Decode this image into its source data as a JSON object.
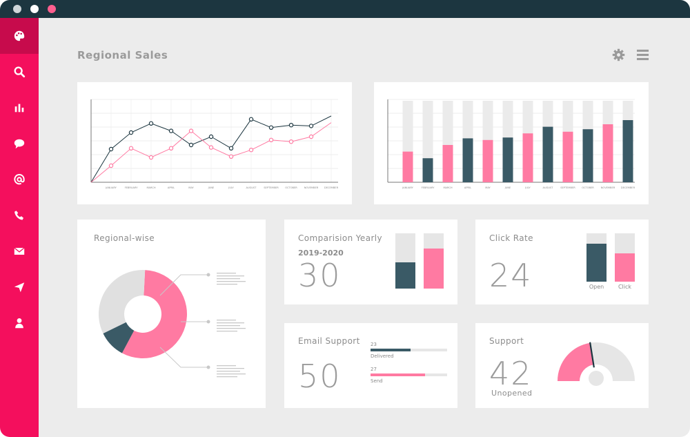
{
  "window": {
    "dot_colors": [
      "#cfd6d9",
      "#ffffff",
      "#ff5f8f"
    ]
  },
  "sidebar": {
    "items": [
      {
        "icon": "palette-icon",
        "active": true
      },
      {
        "icon": "search-icon"
      },
      {
        "icon": "bar-chart-icon"
      },
      {
        "icon": "chat-icon"
      },
      {
        "icon": "at-sign-icon"
      },
      {
        "icon": "phone-icon"
      },
      {
        "icon": "mail-icon"
      },
      {
        "icon": "send-icon"
      },
      {
        "icon": "user-icon"
      }
    ]
  },
  "header": {
    "title": "Regional Sales",
    "icons": [
      "gear-icon",
      "menu-icon"
    ]
  },
  "colors": {
    "accent": "#f40f5d",
    "pink": "#ff7aa2",
    "dark": "#3a5a66",
    "light": "#e6e6e6"
  },
  "months": [
    "JANUARY",
    "FEBRUARY",
    "MARCH",
    "APRIL",
    "MAY",
    "JUNE",
    "JULY",
    "AUGUST",
    "SEPTEMBER",
    "OCTOBER",
    "NOVEMBER",
    "DECEMBER"
  ],
  "chart_data": [
    {
      "type": "line",
      "categories": [
        "JANUARY",
        "FEBRUARY",
        "MARCH",
        "APRIL",
        "MAY",
        "JUNE",
        "JULY",
        "AUGUST",
        "SEPTEMBER",
        "OCTOBER",
        "NOVEMBER",
        "DECEMBER"
      ],
      "series": [
        {
          "color": "#1c3640",
          "values": [
            40,
            60,
            71,
            62,
            45,
            55,
            41,
            76,
            66,
            69,
            68,
            80
          ]
        },
        {
          "color": "#ff7aa2",
          "values": [
            20,
            41,
            30,
            41,
            62,
            42,
            31,
            39,
            51,
            49,
            55,
            72
          ]
        }
      ],
      "ylim": [
        0,
        100
      ],
      "grid": true
    },
    {
      "type": "bar",
      "categories": [
        "JANUARY",
        "FEBRUARY",
        "MARCH",
        "APRIL",
        "MAY",
        "JUNE",
        "JULY",
        "AUGUST",
        "SEPTEMBER",
        "OCTOBER",
        "NOVEMBER",
        "DECEMBER"
      ],
      "values": [
        37,
        29,
        45,
        53,
        51,
        54,
        59,
        67,
        61,
        64,
        70,
        75
      ],
      "colors": [
        "#ff7aa2",
        "#3a5a66",
        "#ff7aa2",
        "#3a5a66",
        "#ff7aa2",
        "#3a5a66",
        "#ff7aa2",
        "#3a5a66",
        "#ff7aa2",
        "#3a5a66",
        "#ff7aa2",
        "#3a5a66"
      ],
      "ylim": [
        0,
        100
      ],
      "grid": true
    }
  ],
  "regional": {
    "title": "Regional-wise",
    "slices": [
      {
        "value": 57,
        "color": "#ff7aa2"
      },
      {
        "value": 10,
        "color": "#3a5a66"
      },
      {
        "value": 33,
        "color": "#e0e0e0"
      }
    ]
  },
  "comparison": {
    "title": "Comparision Yearly",
    "period": "2019-2020",
    "value": "30",
    "bars": [
      {
        "fill": 0.47,
        "color": "#3a5a66"
      },
      {
        "fill": 0.73,
        "color": "#ff7aa2"
      }
    ]
  },
  "click_rate": {
    "title": "Click Rate",
    "value": "24",
    "bars": [
      {
        "label": "Open",
        "fill": 0.78,
        "color": "#3a5a66"
      },
      {
        "label": "Click",
        "fill": 0.58,
        "color": "#ff7aa2"
      }
    ]
  },
  "email_support": {
    "title": "Email Support",
    "value": "50",
    "rows": [
      {
        "count": "23",
        "label": "Delivered",
        "fill": 0.52,
        "color": "#3a5a66"
      },
      {
        "count": "27",
        "label": "Send",
        "fill": 0.71,
        "color": "#ff7aa2"
      }
    ]
  },
  "support": {
    "title": "Support",
    "value": "42",
    "label": "Unopened",
    "gauge_fraction": 0.45
  }
}
